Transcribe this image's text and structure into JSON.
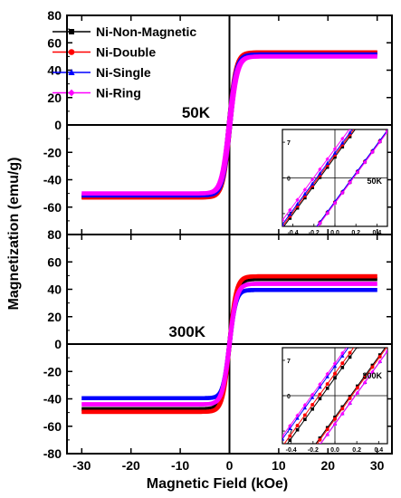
{
  "chart_data": [
    {
      "type": "line",
      "panel": "top",
      "annotation": "50K",
      "xlabel": "Magnetic Field (kOe)",
      "ylabel": "Magnetization (emu/g)",
      "xlim": [
        -33,
        33
      ],
      "ylim": [
        -80,
        80
      ],
      "x_ticks": [
        -30,
        -20,
        -10,
        0,
        10,
        20,
        30
      ],
      "y_ticks": [
        -80,
        -60,
        -40,
        -20,
        0,
        20,
        40,
        60,
        80
      ],
      "legend_placement": "top-left",
      "series": [
        {
          "name": "Ni-Non-Magnetic",
          "color": "#000000",
          "marker": "square",
          "ms": 52.5,
          "hw": 1.5,
          "hc": 0.15
        },
        {
          "name": "Ni-Double",
          "color": "#ff0000",
          "marker": "circle",
          "ms": 53.0,
          "hw": 1.45,
          "hc": 0.16
        },
        {
          "name": "Ni-Single",
          "color": "#0000ff",
          "marker": "triangle",
          "ms": 51.5,
          "hw": 1.5,
          "hc": 0.15
        },
        {
          "name": "Ni-Ring",
          "color": "#ff00ff",
          "marker": "diamond",
          "ms": 50.0,
          "hw": 1.55,
          "hc": 0.15
        }
      ],
      "inset": {
        "label": "50K",
        "xlim": [
          -0.5,
          0.5
        ],
        "ylim": [
          -9.5,
          9.5
        ],
        "x_ticks": [
          -0.4,
          -0.2,
          0.0,
          0.2,
          0.4
        ],
        "x_tick_labels": [
          "-0.4",
          "-0.2",
          "0.0",
          "0.2",
          "0.4"
        ],
        "y_ticks": [
          7,
          0,
          -7
        ],
        "y_tick_labels": [
          "7",
          "0",
          "-7"
        ],
        "slope": 28,
        "coercivity": [
          0.16,
          0.165,
          0.17,
          0.19
        ]
      }
    },
    {
      "type": "line",
      "panel": "bottom",
      "annotation": "300K",
      "xlabel": "Magnetic Field (kOe)",
      "ylabel": "Magnetization (emu/g)",
      "xlim": [
        -33,
        33
      ],
      "ylim": [
        -80,
        80
      ],
      "x_ticks": [
        -30,
        -20,
        -10,
        0,
        10,
        20,
        30
      ],
      "y_ticks": [
        -80,
        -60,
        -40,
        -20,
        0,
        20,
        40,
        60,
        80
      ],
      "series": [
        {
          "name": "Ni-Non-Magnetic",
          "color": "#000000",
          "marker": "square",
          "ms": 47.5,
          "hw": 1.45,
          "hc": 0.05
        },
        {
          "name": "Ni-Double",
          "color": "#ff0000",
          "marker": "circle",
          "ms": 49.5,
          "hw": 1.4,
          "hc": 0.05
        },
        {
          "name": "Ni-Single",
          "color": "#0000ff",
          "marker": "triangle",
          "ms": 39.5,
          "hw": 1.3,
          "hc": 0.05
        },
        {
          "name": "Ni-Ring",
          "color": "#ff00ff",
          "marker": "diamond",
          "ms": 44.0,
          "hw": 1.45,
          "hc": 0.05
        }
      ],
      "inset": {
        "label": "300K",
        "xlim": [
          -0.48,
          0.48
        ],
        "ylim": [
          -9.5,
          9.5
        ],
        "x_ticks": [
          -0.4,
          -0.2,
          0.0,
          0.2,
          0.4
        ],
        "x_tick_labels": [
          "-0.4",
          "-0.2",
          "0.0",
          "0.2",
          "0.4"
        ],
        "y_ticks": [
          7,
          0,
          -7
        ],
        "y_tick_labels": [
          "7",
          "0",
          "-7"
        ],
        "slope": 30,
        "coercivity": [
          0.13,
          0.15,
          0.19,
          0.2
        ]
      }
    }
  ]
}
